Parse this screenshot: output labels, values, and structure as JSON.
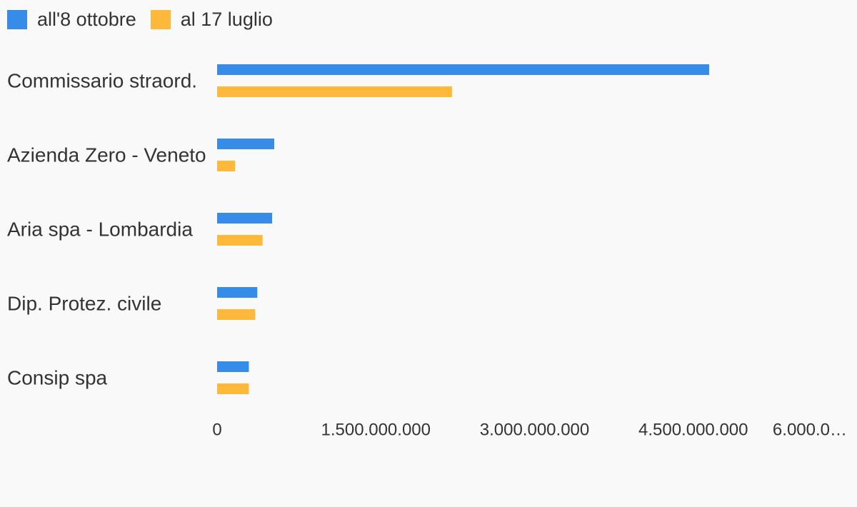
{
  "chart_data": {
    "type": "bar",
    "orientation": "horizontal",
    "categories": [
      "Commissario straord.",
      "Azienda Zero - Veneto",
      "Aria spa - Lombardia",
      "Dip. Protez. civile",
      "Consip spa"
    ],
    "series": [
      {
        "name": "all'8 ottobre",
        "color": "#368ce7",
        "values": [
          4650000000,
          540000000,
          520000000,
          380000000,
          300000000
        ]
      },
      {
        "name": "al 17 luglio",
        "color": "#ffb93a",
        "values": [
          2220000000,
          170000000,
          430000000,
          360000000,
          300000000
        ]
      }
    ],
    "xlim": [
      0,
      6000000000
    ],
    "xticks": [
      0,
      1500000000,
      3000000000,
      4500000000,
      6000000000
    ],
    "xtick_labels": [
      "0",
      "1.500.000.000",
      "3.000.000.000",
      "4.500.000.000",
      "6.000.0…"
    ],
    "grid": false,
    "legend_position": "top-left"
  }
}
